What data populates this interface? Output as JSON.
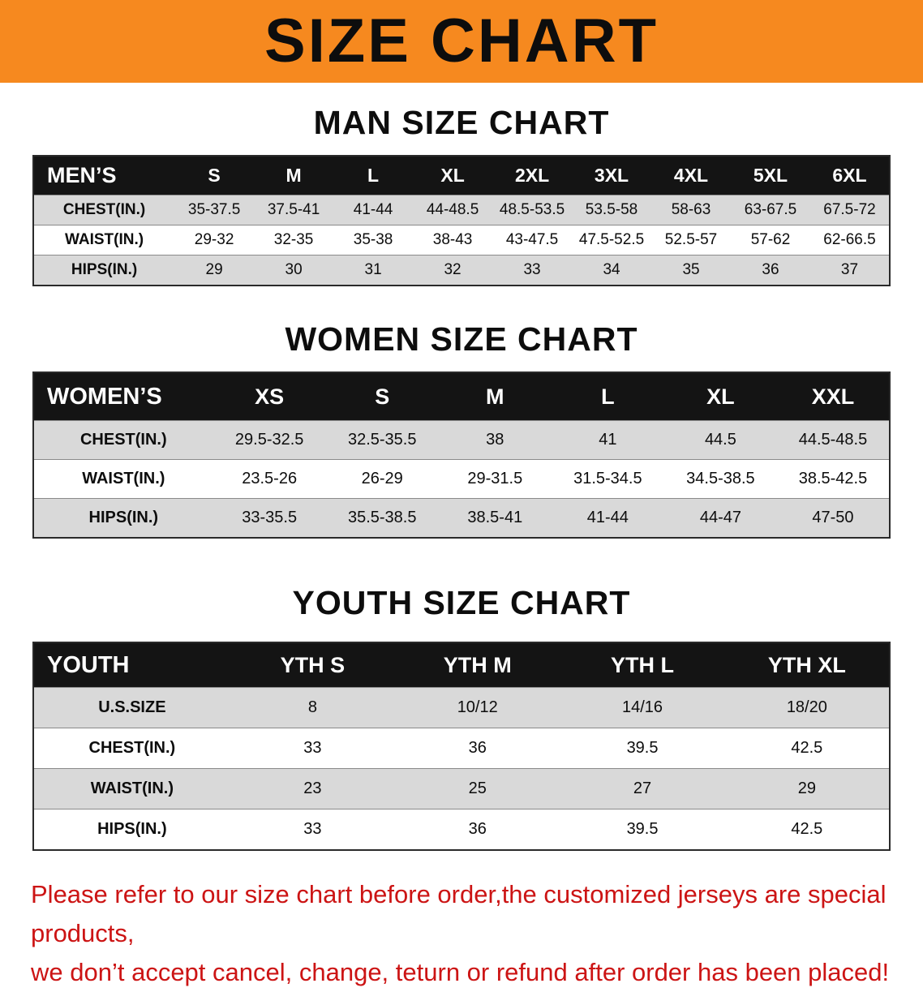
{
  "banner": {
    "title": "SIZE CHART"
  },
  "colors": {
    "banner_bg": "#f6891f",
    "table_header_bg": "#141414",
    "row_stripe": "#d9d9d9",
    "disclaimer_text": "#cc1414"
  },
  "tables": [
    {
      "heading": "MAN SIZE CHART",
      "header": [
        "MEN’S",
        "S",
        "M",
        "L",
        "XL",
        "2XL",
        "3XL",
        "4XL",
        "5XL",
        "6XL"
      ],
      "rows": [
        [
          "CHEST(IN.)",
          "35-37.5",
          "37.5-41",
          "41-44",
          "44-48.5",
          "48.5-53.5",
          "53.5-58",
          "58-63",
          "63-67.5",
          "67.5-72"
        ],
        [
          "WAIST(IN.)",
          "29-32",
          "32-35",
          "35-38",
          "38-43",
          "43-47.5",
          "47.5-52.5",
          "52.5-57",
          "57-62",
          "62-66.5"
        ],
        [
          "HIPS(IN.)",
          "29",
          "30",
          "31",
          "32",
          "33",
          "34",
          "35",
          "36",
          "37"
        ]
      ]
    },
    {
      "heading": "WOMEN SIZE CHART",
      "header": [
        "WOMEN’S",
        "XS",
        "S",
        "M",
        "L",
        "XL",
        "XXL"
      ],
      "rows": [
        [
          "CHEST(IN.)",
          "29.5-32.5",
          "32.5-35.5",
          "38",
          "41",
          "44.5",
          "44.5-48.5"
        ],
        [
          "WAIST(IN.)",
          "23.5-26",
          "26-29",
          "29-31.5",
          "31.5-34.5",
          "34.5-38.5",
          "38.5-42.5"
        ],
        [
          "HIPS(IN.)",
          "33-35.5",
          "35.5-38.5",
          "38.5-41",
          "41-44",
          "44-47",
          "47-50"
        ]
      ]
    },
    {
      "heading": "YOUTH SIZE CHART",
      "header": [
        "YOUTH",
        "YTH S",
        "YTH M",
        "YTH L",
        "YTH XL"
      ],
      "rows": [
        [
          "U.S.SIZE",
          "8",
          "10/12",
          "14/16",
          "18/20"
        ],
        [
          "CHEST(IN.)",
          "33",
          "36",
          "39.5",
          "42.5"
        ],
        [
          "WAIST(IN.)",
          "23",
          "25",
          "27",
          "29"
        ],
        [
          "HIPS(IN.)",
          "33",
          "36",
          "39.5",
          "42.5"
        ]
      ]
    }
  ],
  "disclaimer": {
    "line1": "Please refer to our size chart before order,the customized jerseys are special products,",
    "line2": "we don’t accept cancel, change, teturn or refund after order has been placed!"
  }
}
